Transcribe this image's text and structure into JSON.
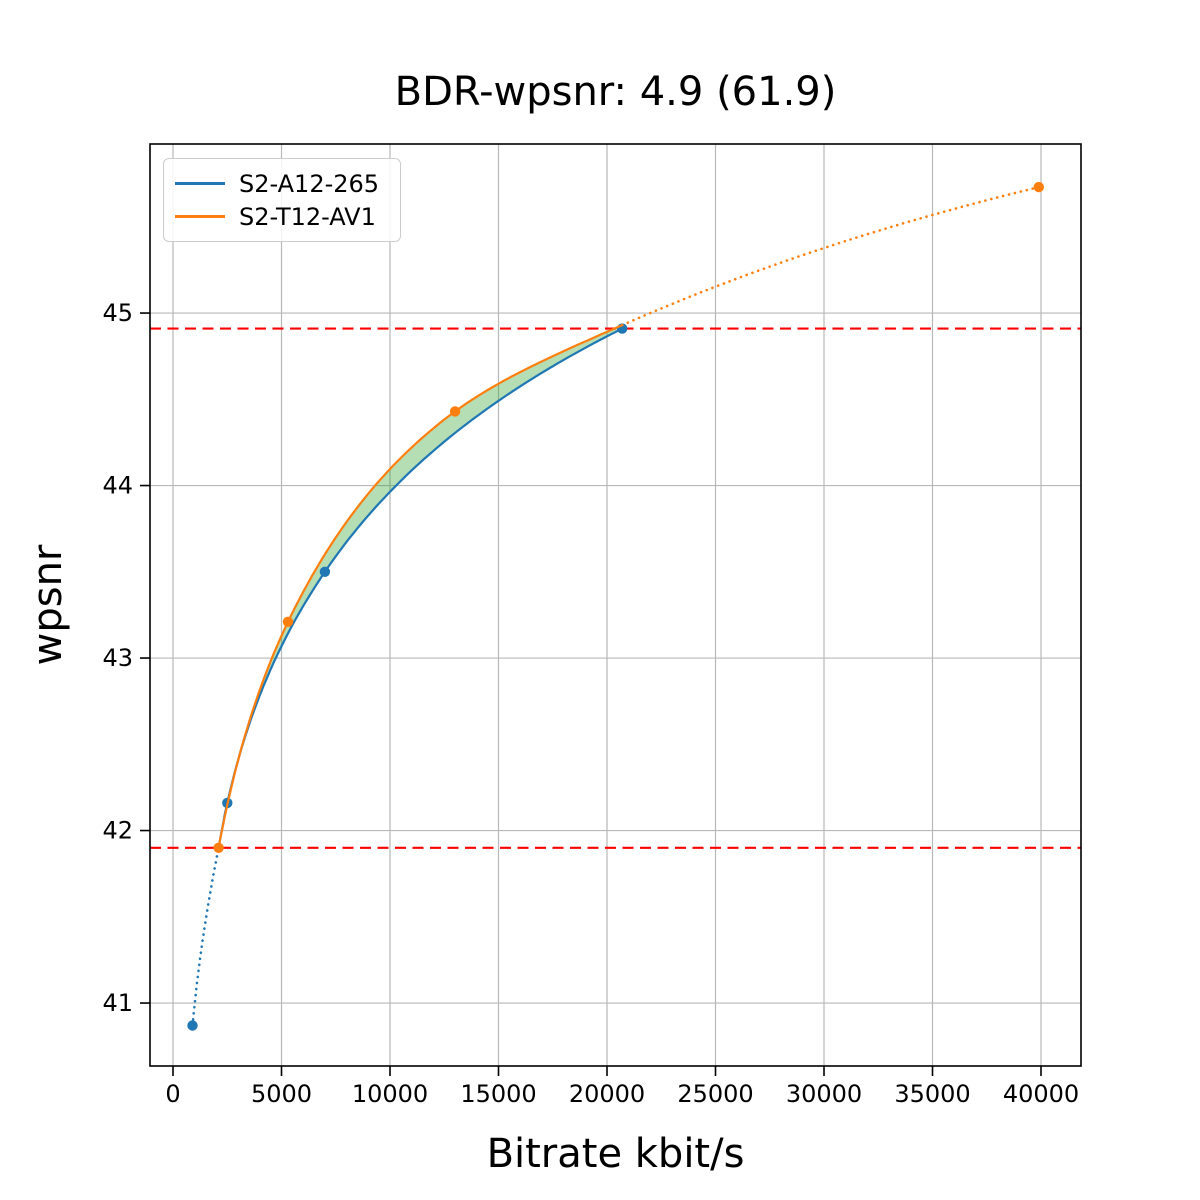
{
  "chart_data": {
    "type": "line",
    "title": "BDR-wpsnr: 4.9 (61.9)",
    "xlabel": "Bitrate kbit/s",
    "ylabel": "wpsnr",
    "xlim": [
      -1060,
      41843
    ],
    "ylim": [
      40.635,
      45.98
    ],
    "xticks": [
      0,
      5000,
      10000,
      15000,
      20000,
      25000,
      30000,
      35000,
      40000
    ],
    "yticks": [
      41,
      42,
      43,
      44,
      45
    ],
    "grid": true,
    "legend_position": "upper-left",
    "series": [
      {
        "name": "S2-A12-265",
        "color": "#1f77b4",
        "curve_points": [
          [
            900,
            40.87
          ],
          [
            2100,
            41.9
          ],
          [
            2500,
            42.16
          ],
          [
            7000,
            43.5
          ],
          [
            20700,
            44.91
          ]
        ],
        "marker_points": [
          [
            900,
            40.87
          ],
          [
            2500,
            42.16
          ],
          [
            7000,
            43.5
          ],
          [
            20700,
            44.91
          ]
        ],
        "solid_x_range": [
          2100,
          20700
        ]
      },
      {
        "name": "S2-T12-AV1",
        "color": "#ff7f0e",
        "curve_points": [
          [
            2100,
            41.9
          ],
          [
            5300,
            43.21
          ],
          [
            13000,
            44.43
          ],
          [
            20700,
            44.93
          ],
          [
            39900,
            45.73
          ]
        ],
        "marker_points": [
          [
            2100,
            41.9
          ],
          [
            5300,
            43.21
          ],
          [
            13000,
            44.43
          ],
          [
            39900,
            45.73
          ]
        ],
        "solid_x_range": [
          2100,
          20700
        ]
      }
    ],
    "hlines": [
      {
        "y": 44.91,
        "color": "#ff0000",
        "style": "dashed"
      },
      {
        "y": 41.9,
        "color": "#ff0000",
        "style": "dashed"
      }
    ],
    "fill_between": {
      "x_range": [
        2100,
        20700
      ],
      "color": "#2ca02c",
      "opacity": 0.35
    },
    "grid_color": "#b8b8b8"
  }
}
